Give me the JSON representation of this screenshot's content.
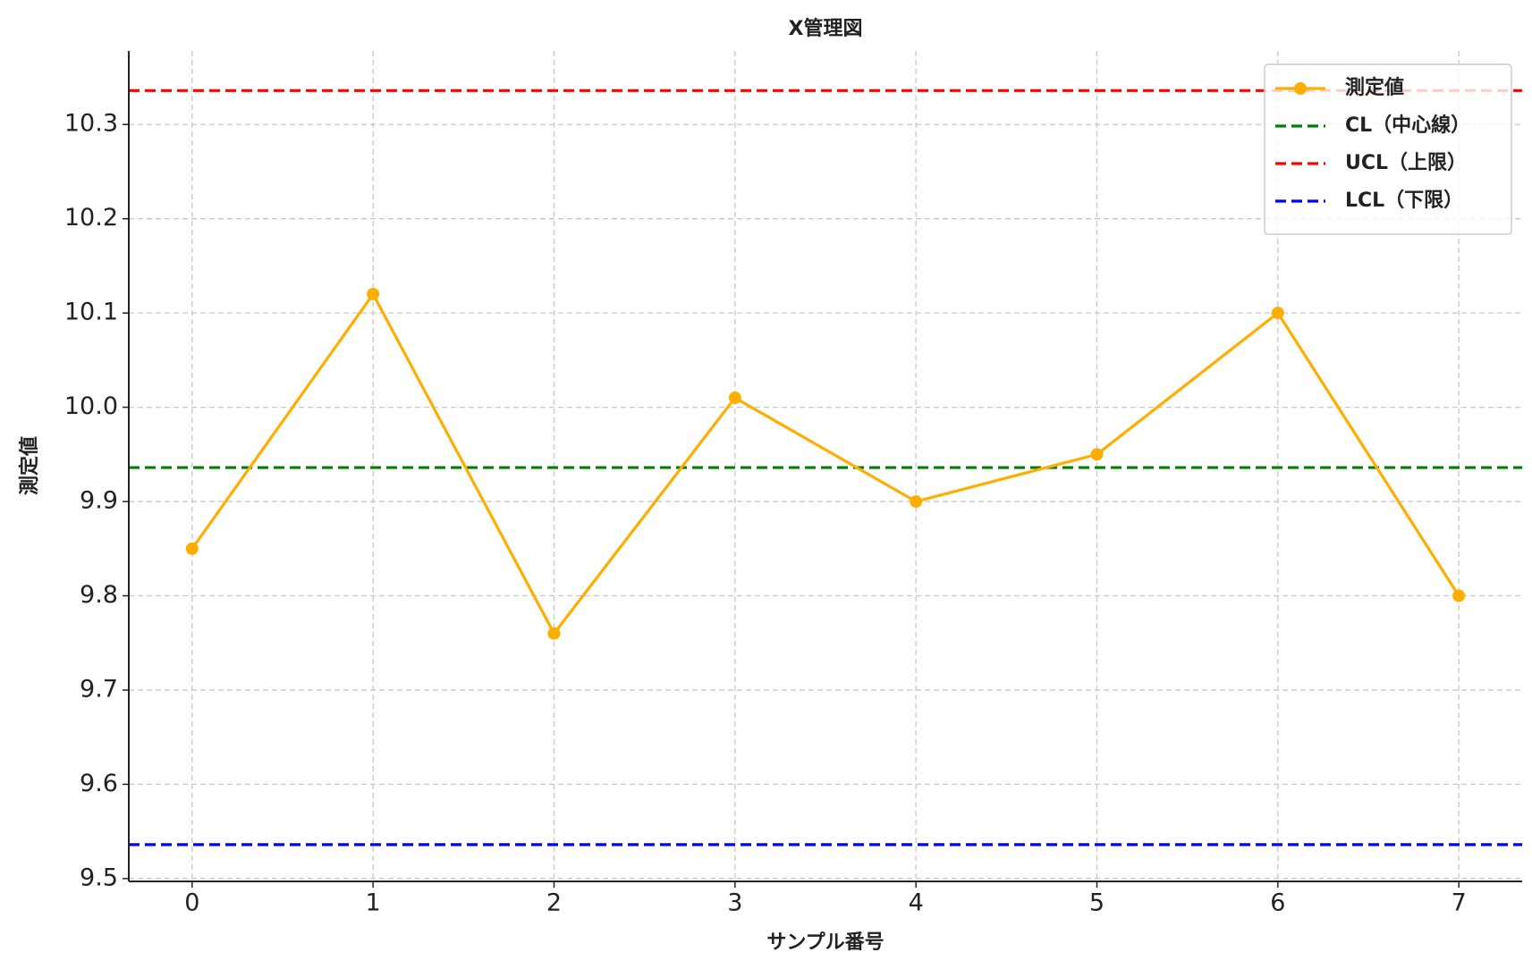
{
  "chart_data": {
    "type": "line",
    "title": "X管理図",
    "xlabel": "サンプル番号",
    "ylabel": "測定値",
    "x": [
      0,
      1,
      2,
      3,
      4,
      5,
      6,
      7
    ],
    "series": [
      {
        "name": "測定値",
        "color": "#ffae00",
        "values": [
          9.85,
          10.12,
          9.76,
          10.01,
          9.9,
          9.95,
          10.1,
          9.8
        ]
      }
    ],
    "hlines": [
      {
        "name": "CL（中心線）",
        "color": "#008000",
        "value": 9.936
      },
      {
        "name": "UCL（上限）",
        "color": "#ff0000",
        "value": 10.336
      },
      {
        "name": "LCL（下限）",
        "color": "#0000ff",
        "value": 9.536
      }
    ],
    "xlim": [
      -0.35,
      7.35
    ],
    "ylim": [
      9.497,
      10.378
    ],
    "xticks": [
      0,
      1,
      2,
      3,
      4,
      5,
      6,
      7
    ],
    "yticks": [
      9.5,
      9.6,
      9.7,
      9.8,
      9.9,
      {
        "value": 10,
        "label": "10.0"
      },
      10.1,
      10.2,
      10.3
    ],
    "grid": true,
    "legend": "upper right"
  }
}
